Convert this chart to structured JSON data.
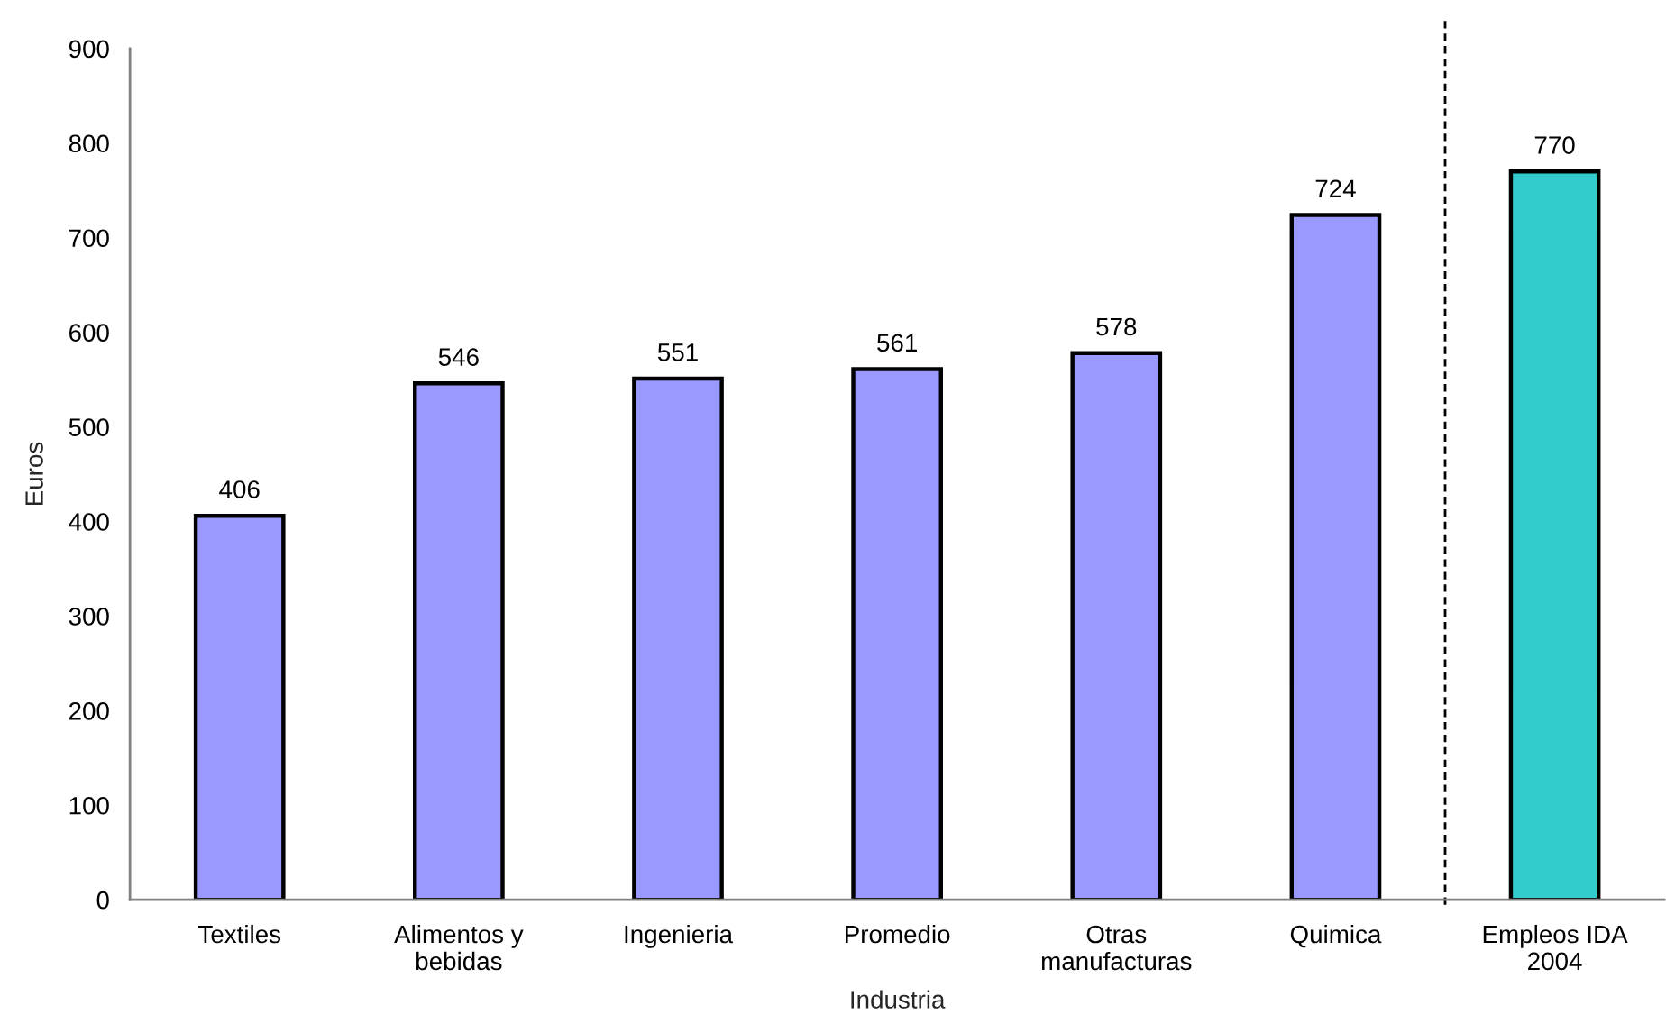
{
  "chart_data": {
    "type": "bar",
    "xlabel": "Industria",
    "ylabel": "Euros",
    "categories": [
      "Textiles",
      "Alimentos y\nbebidas",
      "Ingenieria",
      "Promedio",
      "Otras\nmanufacturas",
      "Quimica",
      "Empleos IDA\n2004"
    ],
    "values": [
      406,
      546,
      551,
      561,
      578,
      724,
      770
    ],
    "colors": [
      "#9999ff",
      "#9999ff",
      "#9999ff",
      "#9999ff",
      "#9999ff",
      "#9999ff",
      "#33cccc"
    ],
    "ylim": [
      0,
      900
    ],
    "yticks": [
      0,
      100,
      200,
      300,
      400,
      500,
      600,
      700,
      800,
      900
    ],
    "data_labels": true,
    "grid": false
  }
}
